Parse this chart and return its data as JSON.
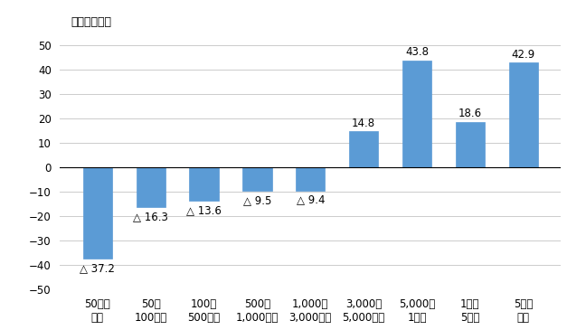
{
  "categories": [
    "50万円\n未満",
    "50～\n100万円",
    "100～\n500万円",
    "500～\n1,000万円",
    "1,000～\n3,000万円",
    "3,000～\n5,000万円",
    "5,000～\n1億円",
    "1億～\n5億円",
    "5億円\n以上"
  ],
  "values": [
    -37.2,
    -16.3,
    -13.6,
    -9.5,
    -9.4,
    14.8,
    43.8,
    18.6,
    42.9
  ],
  "bar_color": "#5B9BD5",
  "ylabel": "増減率（％）",
  "ylim": [
    -50,
    60
  ],
  "yticks": [
    -50,
    -40,
    -30,
    -20,
    -10,
    0,
    10,
    20,
    30,
    40,
    50
  ],
  "background_color": "#ffffff",
  "grid_color": "#cccccc",
  "label_fontsize": 8.5,
  "axis_label_fontsize": 9,
  "tick_fontsize": 8.5
}
